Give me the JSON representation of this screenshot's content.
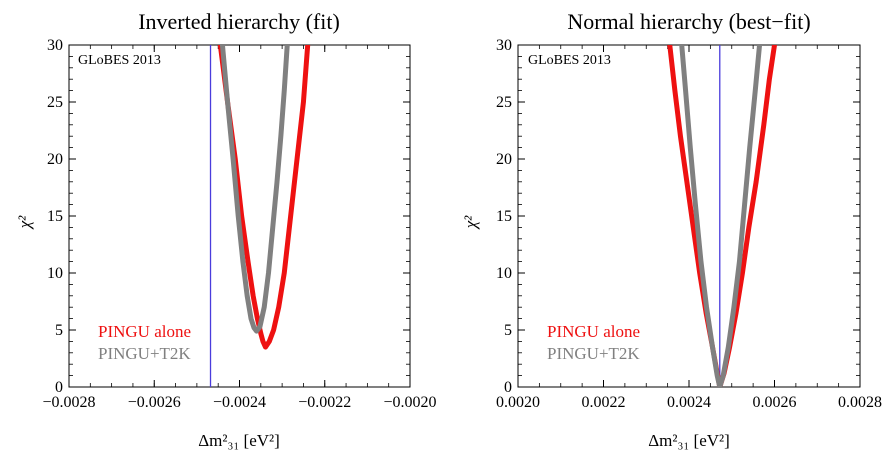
{
  "chart_data": [
    {
      "type": "line",
      "title": "Inverted hierarchy (fit)",
      "xlabel": "Δm²₃₁ [eV²]",
      "ylabel": "χ²",
      "xlim": [
        -0.0028,
        -0.002
      ],
      "ylim": [
        0,
        30
      ],
      "xticks": [
        -0.0028,
        -0.0026,
        -0.0024,
        -0.0022,
        -0.002
      ],
      "xtick_labels": [
        "−0.0028",
        "−0.0026",
        "−0.0024",
        "−0.0022",
        "−0.0020"
      ],
      "yticks": [
        0,
        5,
        10,
        15,
        20,
        25,
        30
      ],
      "ytick_labels": [
        "0",
        "5",
        "10",
        "15",
        "20",
        "25",
        "30"
      ],
      "annotation": "GLoBES 2013",
      "vline": {
        "x": -0.002468,
        "color": "#4a3cdc"
      },
      "series": [
        {
          "name": "PINGU alone",
          "color": "#ee1111",
          "x": [
            -0.002445,
            -0.002428,
            -0.00241,
            -0.002395,
            -0.00238,
            -0.002368,
            -0.002358,
            -0.00235,
            -0.002345,
            -0.002339,
            -0.00233,
            -0.00232,
            -0.002308,
            -0.002295,
            -0.00228,
            -0.002265,
            -0.00225,
            -0.00224
          ],
          "y": [
            30,
            25,
            20,
            15,
            11,
            8,
            6,
            4.7,
            4,
            3.5,
            4,
            5,
            7,
            10,
            15,
            20,
            25,
            30
          ]
        },
        {
          "name": "PINGU+T2K",
          "color": "#808080",
          "x": [
            -0.00244,
            -0.002428,
            -0.002415,
            -0.002403,
            -0.002392,
            -0.002382,
            -0.002373,
            -0.002366,
            -0.00236,
            -0.002352,
            -0.002342,
            -0.002332,
            -0.002322,
            -0.002312,
            -0.002303,
            -0.002295,
            -0.002288
          ],
          "y": [
            30,
            25,
            20,
            15,
            11,
            8,
            6,
            5.2,
            4.9,
            5.3,
            7,
            10,
            14,
            18,
            22,
            26,
            30
          ]
        }
      ]
    },
    {
      "type": "line",
      "title": "Normal hierarchy (best−fit)",
      "xlabel": "Δm²₃₁ [eV²]",
      "ylabel": "χ²",
      "xlim": [
        0.002,
        0.0028
      ],
      "ylim": [
        0,
        30
      ],
      "xticks": [
        0.002,
        0.0022,
        0.0024,
        0.0026,
        0.0028
      ],
      "xtick_labels": [
        "0.0020",
        "0.0022",
        "0.0024",
        "0.0026",
        "0.0028"
      ],
      "yticks": [
        0,
        5,
        10,
        15,
        20,
        25,
        30
      ],
      "ytick_labels": [
        "0",
        "5",
        "10",
        "15",
        "20",
        "25",
        "30"
      ],
      "annotation": "GLoBES 2013",
      "vline": {
        "x": 0.002472,
        "color": "#4a3cdc"
      },
      "series": [
        {
          "name": "PINGU alone",
          "color": "#ee1111",
          "x": [
            0.002355,
            0.002367,
            0.00238,
            0.002395,
            0.00241,
            0.002425,
            0.00244,
            0.002455,
            0.002466,
            0.002472,
            0.002482,
            0.002495,
            0.00251,
            0.002525,
            0.00254,
            0.002557,
            0.002575,
            0.002588,
            0.0026
          ],
          "y": [
            30,
            26,
            22,
            18,
            14,
            10,
            6.5,
            3.5,
            1.2,
            0,
            1.2,
            3.5,
            6.5,
            10,
            14,
            18,
            23,
            27,
            30
          ]
        },
        {
          "name": "PINGU+T2K",
          "color": "#808080",
          "x": [
            0.002383,
            0.002392,
            0.002403,
            0.002415,
            0.002428,
            0.002441,
            0.002455,
            0.002466,
            0.002472,
            0.00248,
            0.002492,
            0.002505,
            0.002518,
            0.00253,
            0.002542,
            0.002555,
            0.002565
          ],
          "y": [
            30,
            26,
            21,
            16,
            11,
            7,
            3.5,
            1,
            0,
            1,
            3.5,
            7,
            11,
            16,
            21,
            26,
            30
          ]
        }
      ]
    }
  ]
}
